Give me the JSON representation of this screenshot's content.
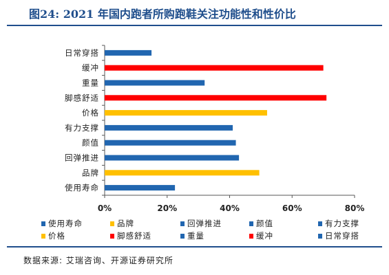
{
  "title": "图24: 2021 年国内跑者所购跑鞋关注功能性和性价比",
  "source": "数据来源: 艾瑞咨询、开源证券研究所",
  "colors": {
    "blue": "#2166b0",
    "red": "#ff0000",
    "yellow": "#ffc000",
    "title": "#1f4e8c"
  },
  "chart_data": {
    "type": "bar",
    "orientation": "horizontal",
    "xlim": [
      0,
      80
    ],
    "xticks": [
      "0%",
      "20%",
      "40%",
      "60%",
      "80%"
    ],
    "grid": false,
    "categories": [
      "日常穿搭",
      "缓冲",
      "重量",
      "脚感舒适",
      "价格",
      "有力支撑",
      "颜值",
      "回弹推进",
      "品牌",
      "使用寿命"
    ],
    "values": [
      15,
      70,
      32,
      71,
      52,
      41,
      42,
      43,
      49.5,
      22.5
    ],
    "bar_colors": [
      "blue",
      "red",
      "blue",
      "red",
      "yellow",
      "blue",
      "blue",
      "blue",
      "yellow",
      "blue"
    ],
    "legend": [
      {
        "label": "使用寿命",
        "color": "blue"
      },
      {
        "label": "品牌",
        "color": "yellow"
      },
      {
        "label": "回弹推进",
        "color": "blue"
      },
      {
        "label": "颜值",
        "color": "blue"
      },
      {
        "label": "有力支撑",
        "color": "blue"
      },
      {
        "label": "价格",
        "color": "yellow"
      },
      {
        "label": "脚感舒适",
        "color": "red"
      },
      {
        "label": "重量",
        "color": "blue"
      },
      {
        "label": "缓冲",
        "color": "red"
      },
      {
        "label": "日常穿搭",
        "color": "blue"
      }
    ],
    "legend_placement": "bottom"
  }
}
